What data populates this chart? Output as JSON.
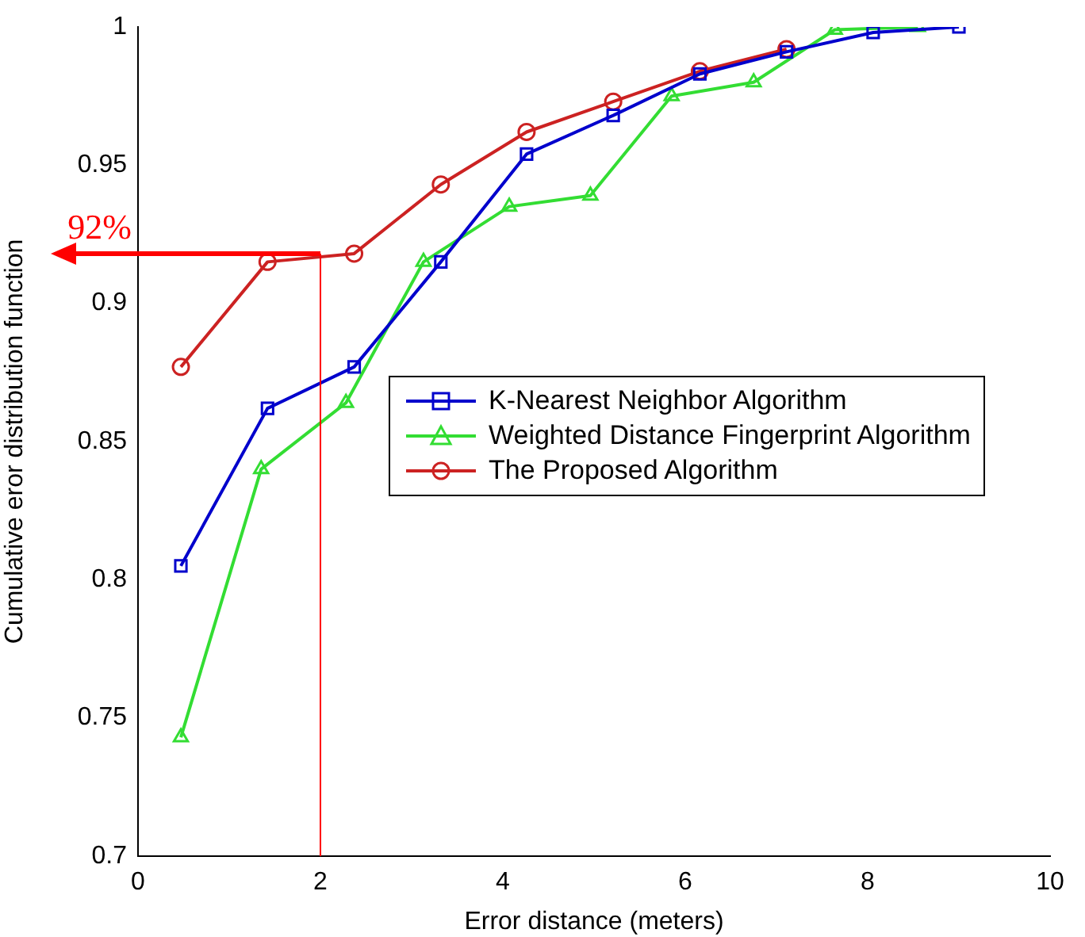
{
  "chart_data": {
    "type": "line",
    "xlabel": "Error distance (meters)",
    "ylabel": "Cumulative eror distribution function",
    "xlim": [
      0,
      10
    ],
    "xticks": [
      0,
      2,
      4,
      6,
      8,
      10
    ],
    "ylim": [
      0.7,
      1
    ],
    "yticks": [
      0.7,
      0.75,
      0.8,
      0.85,
      0.9,
      0.95,
      1
    ],
    "grid": false,
    "legend": "right",
    "line_style": "solid",
    "series": [
      {
        "name": "K-Nearest Neighbor Algorithm",
        "color": "#0000cc",
        "marker": "square",
        "x": [
          0.47,
          1.42,
          2.37,
          3.32,
          4.26,
          5.21,
          6.16,
          7.11,
          8.06,
          9.0
        ],
        "values": [
          0.805,
          0.862,
          0.877,
          0.915,
          0.954,
          0.968,
          0.983,
          0.991,
          0.998,
          1.0
        ]
      },
      {
        "name": "Weighted Distance Fingerprint Algorithm",
        "color": "#33dd33",
        "marker": "triangle",
        "x": [
          0.47,
          1.35,
          2.28,
          3.13,
          4.07,
          4.96,
          5.85,
          6.75,
          7.64,
          8.55
        ],
        "values": [
          0.743,
          0.84,
          0.864,
          0.915,
          0.935,
          0.939,
          0.975,
          0.98,
          0.999,
          1.0
        ]
      },
      {
        "name": "The Proposed Algorithm",
        "color": "#cc2222",
        "marker": "circle",
        "x": [
          0.47,
          1.42,
          2.37,
          3.32,
          4.26,
          5.21,
          6.16,
          7.11
        ],
        "values": [
          0.877,
          0.915,
          0.918,
          0.943,
          0.962,
          0.973,
          0.984,
          0.992
        ]
      }
    ],
    "ref_lines": [
      {
        "axis": "x",
        "value": 2,
        "color": "#ff0000",
        "line_style": "solid"
      },
      {
        "axis": "y",
        "value": 0.918,
        "label": "92%",
        "color": "#ff0000",
        "line_style": "solid"
      }
    ]
  }
}
